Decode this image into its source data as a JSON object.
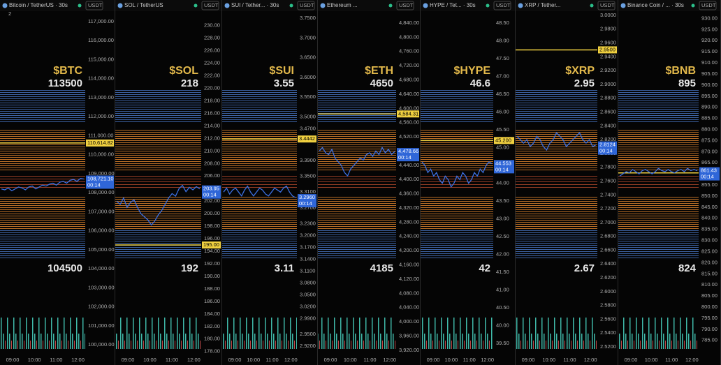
{
  "currency": "USDT",
  "countdown": "00:14",
  "badge": 2,
  "time_labels": [
    "09:00",
    "10:00",
    "11:00",
    "12:00"
  ],
  "chart_data": [
    {
      "type": "line",
      "title": "Bitcoin / TetherUS · 30s",
      "ticker": "$BTC",
      "upper_label": 113500,
      "lower_label": 104500,
      "color": "#3b6fe0",
      "ylim": [
        99413,
        117844
      ],
      "yticks": [
        {
          "value": 117000,
          "label": "117,000.00"
        },
        {
          "value": 116000,
          "label": "116,000.00"
        },
        {
          "value": 115000,
          "label": "115,000.00"
        },
        {
          "value": 114000,
          "label": "114,000.00"
        },
        {
          "value": 113000,
          "label": "113,000.00"
        },
        {
          "value": 112000,
          "label": "112,000.00"
        },
        {
          "value": 111000,
          "label": "111,000.00"
        },
        {
          "value": 110000,
          "label": "110,000.00"
        },
        {
          "value": 109000,
          "label": "109,000.00"
        },
        {
          "value": 108000,
          "label": "108,000.00"
        },
        {
          "value": 107000,
          "label": "107,000.00"
        },
        {
          "value": 106000,
          "label": "106,000.00"
        },
        {
          "value": 105000,
          "label": "105,000.00"
        },
        {
          "value": 104000,
          "label": "104,000.00"
        },
        {
          "value": 103000,
          "label": "103,000.00"
        },
        {
          "value": 102000,
          "label": "102,000.00"
        },
        {
          "value": 101000,
          "label": "101,000.00"
        },
        {
          "value": 100000,
          "label": "100,000.00"
        }
      ],
      "price_line": {
        "value": 110614.82,
        "label": "110,614.82"
      },
      "last_price": {
        "value": 108721.1,
        "label": "108,721.10"
      },
      "values": [
        108200,
        108150,
        108250,
        108100,
        108200,
        108300,
        108250,
        108150,
        108300,
        108350,
        108200,
        108300,
        108400,
        108350,
        108450,
        108500,
        108400,
        108550,
        108600,
        108500,
        108650,
        108700,
        108600,
        108750,
        108721.1
      ]
    },
    {
      "type": "line",
      "title": "SOL / TetherUS",
      "ticker": "$SOL",
      "upper_label": 218,
      "lower_label": 192,
      "color": "#3b6fe0",
      "ylim": [
        177.3,
        233.2
      ],
      "yticks": [
        {
          "value": 230,
          "label": "230.00"
        },
        {
          "value": 228,
          "label": "228.00"
        },
        {
          "value": 226,
          "label": "226.00"
        },
        {
          "value": 224,
          "label": "224.00"
        },
        {
          "value": 222,
          "label": "222.00"
        },
        {
          "value": 220,
          "label": "220.00"
        },
        {
          "value": 218,
          "label": "218.00"
        },
        {
          "value": 216,
          "label": "216.00"
        },
        {
          "value": 214,
          "label": "214.00"
        },
        {
          "value": 212,
          "label": "212.00"
        },
        {
          "value": 210,
          "label": "210.00"
        },
        {
          "value": 208,
          "label": "208.00"
        },
        {
          "value": 206,
          "label": "206.00"
        },
        {
          "value": 204,
          "label": "204.00"
        },
        {
          "value": 202,
          "label": "202.00"
        },
        {
          "value": 200,
          "label": "200.00"
        },
        {
          "value": 198,
          "label": "198.00"
        },
        {
          "value": 196,
          "label": "196.00"
        },
        {
          "value": 194,
          "label": "194.00"
        },
        {
          "value": 192,
          "label": "192.00"
        },
        {
          "value": 190,
          "label": "190.00"
        },
        {
          "value": 188,
          "label": "188.00"
        },
        {
          "value": 186,
          "label": "186.00"
        },
        {
          "value": 184,
          "label": "184.00"
        },
        {
          "value": 182,
          "label": "182.00"
        },
        {
          "value": 180,
          "label": "180.00"
        },
        {
          "value": 178,
          "label": "178.00"
        }
      ],
      "price_line": {
        "value": 195,
        "label": "195.00"
      },
      "last_price": {
        "value": 203.95,
        "label": "203.95"
      },
      "values": [
        202,
        201.5,
        202.5,
        201,
        201.8,
        202.2,
        201,
        200,
        199.5,
        199,
        198.2,
        198.8,
        199.8,
        200.5,
        201.5,
        202.5,
        203.2,
        202.8,
        204,
        204.5,
        203.5,
        204.2,
        203.8,
        204.3,
        203.95
      ]
    },
    {
      "type": "line",
      "title": "SUI / Tether... · 30s",
      "ticker": "$SUI",
      "upper_label": 3.55,
      "lower_label": 3.11,
      "color": "#3b6fe0",
      "ylim": [
        2.8953,
        3.7818
      ],
      "yticks": [
        {
          "value": 3.75,
          "label": "3.7500"
        },
        {
          "value": 3.7,
          "label": "3.7000"
        },
        {
          "value": 3.65,
          "label": "3.6500"
        },
        {
          "value": 3.6,
          "label": "3.6000"
        },
        {
          "value": 3.55,
          "label": "3.5500"
        },
        {
          "value": 3.5,
          "label": "3.5000"
        },
        {
          "value": 3.47,
          "label": "3.4700"
        },
        {
          "value": 3.39,
          "label": "3.3900"
        },
        {
          "value": 3.35,
          "label": "3.3500"
        },
        {
          "value": 3.31,
          "label": "3.3100"
        },
        {
          "value": 3.27,
          "label": "3.2700"
        },
        {
          "value": 3.23,
          "label": "3.2300"
        },
        {
          "value": 3.2,
          "label": "3.2000"
        },
        {
          "value": 3.17,
          "label": "3.1700"
        },
        {
          "value": 3.14,
          "label": "3.1400"
        },
        {
          "value": 3.11,
          "label": "3.1100"
        },
        {
          "value": 3.08,
          "label": "3.0800"
        },
        {
          "value": 3.05,
          "label": "3.0500"
        },
        {
          "value": 3.02,
          "label": "3.0200"
        },
        {
          "value": 2.99,
          "label": "2.9900"
        },
        {
          "value": 2.95,
          "label": "2.9500"
        },
        {
          "value": 2.92,
          "label": "2.9200"
        }
      ],
      "price_line": {
        "value": 3.4442,
        "label": "3.4442"
      },
      "last_price": {
        "value": 3.296,
        "label": "3.2960"
      },
      "values": [
        3.31,
        3.32,
        3.305,
        3.315,
        3.32,
        3.31,
        3.3,
        3.315,
        3.325,
        3.31,
        3.3,
        3.31,
        3.32,
        3.315,
        3.305,
        3.3,
        3.31,
        3.32,
        3.315,
        3.31,
        3.32,
        3.325,
        3.31,
        3.3,
        3.296
      ]
    },
    {
      "type": "line",
      "title": "Ethereum ...",
      "ticker": "$ETH",
      "upper_label": 4650,
      "lower_label": 4185,
      "color": "#3b6fe0",
      "ylim": [
        3904,
        4889
      ],
      "yticks": [
        {
          "value": 4840,
          "label": "4,840.00"
        },
        {
          "value": 4800,
          "label": "4,800.00"
        },
        {
          "value": 4760,
          "label": "4,760.00"
        },
        {
          "value": 4720,
          "label": "4,720.00"
        },
        {
          "value": 4680,
          "label": "4,680.00"
        },
        {
          "value": 4640,
          "label": "4,640.00"
        },
        {
          "value": 4600,
          "label": "4,600.00"
        },
        {
          "value": 4560,
          "label": "4,560.00"
        },
        {
          "value": 4520,
          "label": "4,520.00"
        },
        {
          "value": 4480,
          "label": "4,480.00"
        },
        {
          "value": 4440,
          "label": "4,440.00"
        },
        {
          "value": 4400,
          "label": "4,400.00"
        },
        {
          "value": 4360,
          "label": "4,360.00"
        },
        {
          "value": 4320,
          "label": "4,320.00"
        },
        {
          "value": 4280,
          "label": "4,280.00"
        },
        {
          "value": 4240,
          "label": "4,240.00"
        },
        {
          "value": 4200,
          "label": "4,200.00"
        },
        {
          "value": 4160,
          "label": "4,160.00"
        },
        {
          "value": 4120,
          "label": "4,120.00"
        },
        {
          "value": 4080,
          "label": "4,080.00"
        },
        {
          "value": 4040,
          "label": "4,040.00"
        },
        {
          "value": 4000,
          "label": "4,000.00"
        },
        {
          "value": 3960,
          "label": "3,960.00"
        },
        {
          "value": 3920,
          "label": "3,920.00"
        }
      ],
      "price_line": {
        "value": 4584.31,
        "label": "4,584.31"
      },
      "last_price": {
        "value": 4478.66,
        "label": "4,478.66"
      },
      "values": [
        4480,
        4490,
        4475,
        4470,
        4485,
        4460,
        4450,
        4440,
        4420,
        4410,
        4430,
        4440,
        4450,
        4460,
        4455,
        4470,
        4475,
        4465,
        4480,
        4470,
        4490,
        4475,
        4485,
        4470,
        4478.66
      ]
    },
    {
      "type": "line",
      "title": "HYPE / Tet... · 30s",
      "ticker": "$HYPE",
      "upper_label": 46.6,
      "lower_label": 42,
      "color": "#3b6fe0",
      "ylim": [
        39.15,
        48.99
      ],
      "yticks": [
        {
          "value": 48.5,
          "label": "48.50"
        },
        {
          "value": 48,
          "label": "48.00"
        },
        {
          "value": 47.5,
          "label": "47.50"
        },
        {
          "value": 47,
          "label": "47.00"
        },
        {
          "value": 46.5,
          "label": "46.50"
        },
        {
          "value": 46,
          "label": "46.00"
        },
        {
          "value": 45.5,
          "label": "45.50"
        },
        {
          "value": 45,
          "label": "45.00"
        },
        {
          "value": 44.5,
          "label": "44.50"
        },
        {
          "value": 44,
          "label": "44.00"
        },
        {
          "value": 43.5,
          "label": "43.50"
        },
        {
          "value": 43,
          "label": "43.00"
        },
        {
          "value": 42.5,
          "label": "42.50"
        },
        {
          "value": 42,
          "label": "42.00"
        },
        {
          "value": 41.5,
          "label": "41.50"
        },
        {
          "value": 41,
          "label": "41.00"
        },
        {
          "value": 40.5,
          "label": "40.50"
        },
        {
          "value": 40,
          "label": "40.00"
        },
        {
          "value": 39.5,
          "label": "39.50"
        }
      ],
      "price_line": {
        "value": 45.2,
        "label": "45.200"
      },
      "last_price": {
        "value": 44.553,
        "label": "44.553"
      },
      "values": [
        44.6,
        44.5,
        44.3,
        44.4,
        44.2,
        44.3,
        44.1,
        44,
        44.2,
        44.1,
        43.9,
        44,
        44.2,
        44.1,
        44.3,
        44.2,
        44,
        44.1,
        44.3,
        44.2,
        44.4,
        44.3,
        44.5,
        44.6,
        44.553
      ]
    },
    {
      "type": "line",
      "title": "XRP / Tether...",
      "ticker": "$XRP",
      "upper_label": 2.95,
      "lower_label": 2.67,
      "color": "#3b6fe0",
      "ylim": [
        2.5069,
        3.0141
      ],
      "yticks": [
        {
          "value": 3,
          "label": "3.0000"
        },
        {
          "value": 2.98,
          "label": "2.9800"
        },
        {
          "value": 2.96,
          "label": "2.9600"
        },
        {
          "value": 2.94,
          "label": "2.9400"
        },
        {
          "value": 2.92,
          "label": "2.9200"
        },
        {
          "value": 2.9,
          "label": "2.9000"
        },
        {
          "value": 2.88,
          "label": "2.8800"
        },
        {
          "value": 2.86,
          "label": "2.8600"
        },
        {
          "value": 2.84,
          "label": "2.8400"
        },
        {
          "value": 2.82,
          "label": "2.8200"
        },
        {
          "value": 2.8,
          "label": "2.8000"
        },
        {
          "value": 2.78,
          "label": "2.7800"
        },
        {
          "value": 2.76,
          "label": "2.7600"
        },
        {
          "value": 2.74,
          "label": "2.7400"
        },
        {
          "value": 2.72,
          "label": "2.7200"
        },
        {
          "value": 2.7,
          "label": "2.7000"
        },
        {
          "value": 2.68,
          "label": "2.6800"
        },
        {
          "value": 2.66,
          "label": "2.6600"
        },
        {
          "value": 2.64,
          "label": "2.6400"
        },
        {
          "value": 2.62,
          "label": "2.6200"
        },
        {
          "value": 2.6,
          "label": "2.6000"
        },
        {
          "value": 2.58,
          "label": "2.5800"
        },
        {
          "value": 2.56,
          "label": "2.5600"
        },
        {
          "value": 2.54,
          "label": "2.5400"
        },
        {
          "value": 2.52,
          "label": "2.5200"
        }
      ],
      "price_line": {
        "value": 2.95,
        "label": "2.9500"
      },
      "last_price": {
        "value": 2.8124,
        "label": "2.8124"
      },
      "values": [
        2.825,
        2.82,
        2.815,
        2.82,
        2.81,
        2.815,
        2.825,
        2.82,
        2.81,
        2.805,
        2.815,
        2.82,
        2.83,
        2.825,
        2.82,
        2.81,
        2.815,
        2.82,
        2.825,
        2.83,
        2.82,
        2.815,
        2.82,
        2.81,
        2.8124
      ]
    },
    {
      "type": "line",
      "title": "Binance Coin / ... · 30s",
      "ticker": "$BNB",
      "upper_label": 895,
      "lower_label": 824,
      "color": "#3b6fe0",
      "ylim": [
        778,
        935.8
      ],
      "yticks": [
        {
          "value": 930,
          "label": "930.00"
        },
        {
          "value": 925,
          "label": "925.00"
        },
        {
          "value": 920,
          "label": "920.00"
        },
        {
          "value": 915,
          "label": "915.00"
        },
        {
          "value": 910,
          "label": "910.00"
        },
        {
          "value": 905,
          "label": "905.00"
        },
        {
          "value": 900,
          "label": "900.00"
        },
        {
          "value": 895,
          "label": "895.00"
        },
        {
          "value": 890,
          "label": "890.00"
        },
        {
          "value": 885,
          "label": "885.00"
        },
        {
          "value": 880,
          "label": "880.00"
        },
        {
          "value": 875,
          "label": "875.00"
        },
        {
          "value": 870,
          "label": "870.00"
        },
        {
          "value": 865,
          "label": "865.00"
        },
        {
          "value": 855,
          "label": "855.00"
        },
        {
          "value": 850,
          "label": "850.00"
        },
        {
          "value": 845,
          "label": "845.00"
        },
        {
          "value": 840,
          "label": "840.00"
        },
        {
          "value": 835,
          "label": "835.00"
        },
        {
          "value": 830,
          "label": "830.00"
        },
        {
          "value": 825,
          "label": "825.00"
        },
        {
          "value": 820,
          "label": "820.00"
        },
        {
          "value": 815,
          "label": "815.00"
        },
        {
          "value": 810,
          "label": "810.00"
        },
        {
          "value": 805,
          "label": "805.00"
        },
        {
          "value": 800,
          "label": "800.00"
        },
        {
          "value": 795,
          "label": "795.00"
        },
        {
          "value": 790,
          "label": "790.00"
        },
        {
          "value": 785,
          "label": "785.00"
        }
      ],
      "price_line": {
        "value": 860.42,
        "label": "860.42"
      },
      "last_price": {
        "value": 861.43,
        "label": "861.43"
      },
      "values": [
        859,
        860,
        861,
        860.5,
        862,
        861,
        860,
        861.5,
        862,
        861,
        860,
        861,
        862.5,
        861.5,
        861,
        862,
        861,
        860.5,
        861.5,
        862,
        861,
        862.5,
        861.5,
        862,
        861.43
      ]
    }
  ]
}
